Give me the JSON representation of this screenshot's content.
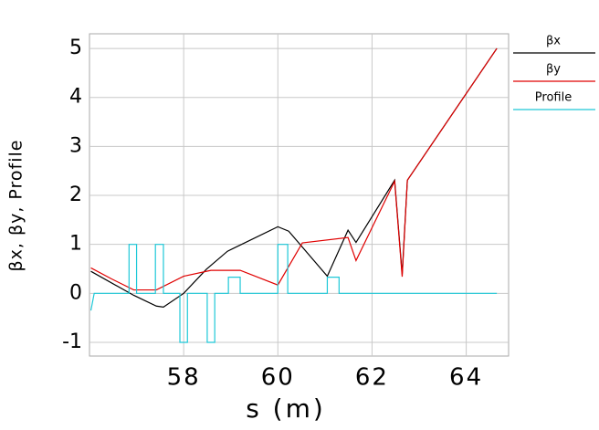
{
  "chart_data": {
    "type": "line",
    "xlabel": "s (m)",
    "ylabel": "βx, βy, Profile",
    "xlim": [
      56.0,
      64.9
    ],
    "ylim": [
      -1.28,
      5.3
    ],
    "xticks": [
      58,
      60,
      62,
      64
    ],
    "yticks": [
      -1,
      0,
      1,
      2,
      3,
      4,
      5
    ],
    "grid": true,
    "legend": "right",
    "series": [
      {
        "name": "βx",
        "color": "#000000",
        "x": [
          56.03,
          56.94,
          57.42,
          57.57,
          58.0,
          58.48,
          58.93,
          60.0,
          60.23,
          61.05,
          61.49,
          61.66,
          62.48,
          62.64,
          62.75,
          64.65
        ],
        "values": [
          0.45,
          -0.04,
          -0.26,
          -0.28,
          0,
          0.49,
          0.86,
          1.36,
          1.27,
          0.35,
          1.29,
          1.04,
          2.31,
          0.39,
          2.31,
          5.0
        ]
      },
      {
        "name": "βy",
        "color": "#e00000",
        "x": [
          56.03,
          56.46,
          56.94,
          57.42,
          58.0,
          58.58,
          59.2,
          60.0,
          60.52,
          61.49,
          61.66,
          62.48,
          62.64,
          62.75,
          64.65
        ],
        "values": [
          0.52,
          0.3,
          0.07,
          0.07,
          0.35,
          0.47,
          0.47,
          0.17,
          1.03,
          1.14,
          0.67,
          2.29,
          0.34,
          2.31,
          5.0
        ]
      },
      {
        "name": "Profile",
        "color": "#1ec8d8",
        "x": [
          56.03,
          56.1,
          56.84,
          56.84,
          57.0,
          57.0,
          57.4,
          57.4,
          57.57,
          57.57,
          57.92,
          57.92,
          58.08,
          58.08,
          58.5,
          58.5,
          58.66,
          58.66,
          58.95,
          58.95,
          59.2,
          59.2,
          60.0,
          60.0,
          60.21,
          60.21,
          61.05,
          61.05,
          61.3,
          61.3,
          64.65
        ],
        "values": [
          -0.35,
          0,
          0,
          1,
          1,
          0,
          0,
          1,
          1,
          0,
          0,
          -1,
          -1,
          0,
          0,
          -1,
          -1,
          0,
          0,
          0.33,
          0.33,
          0,
          0,
          1,
          1,
          0,
          0,
          0.33,
          0.33,
          0,
          0
        ]
      }
    ]
  }
}
